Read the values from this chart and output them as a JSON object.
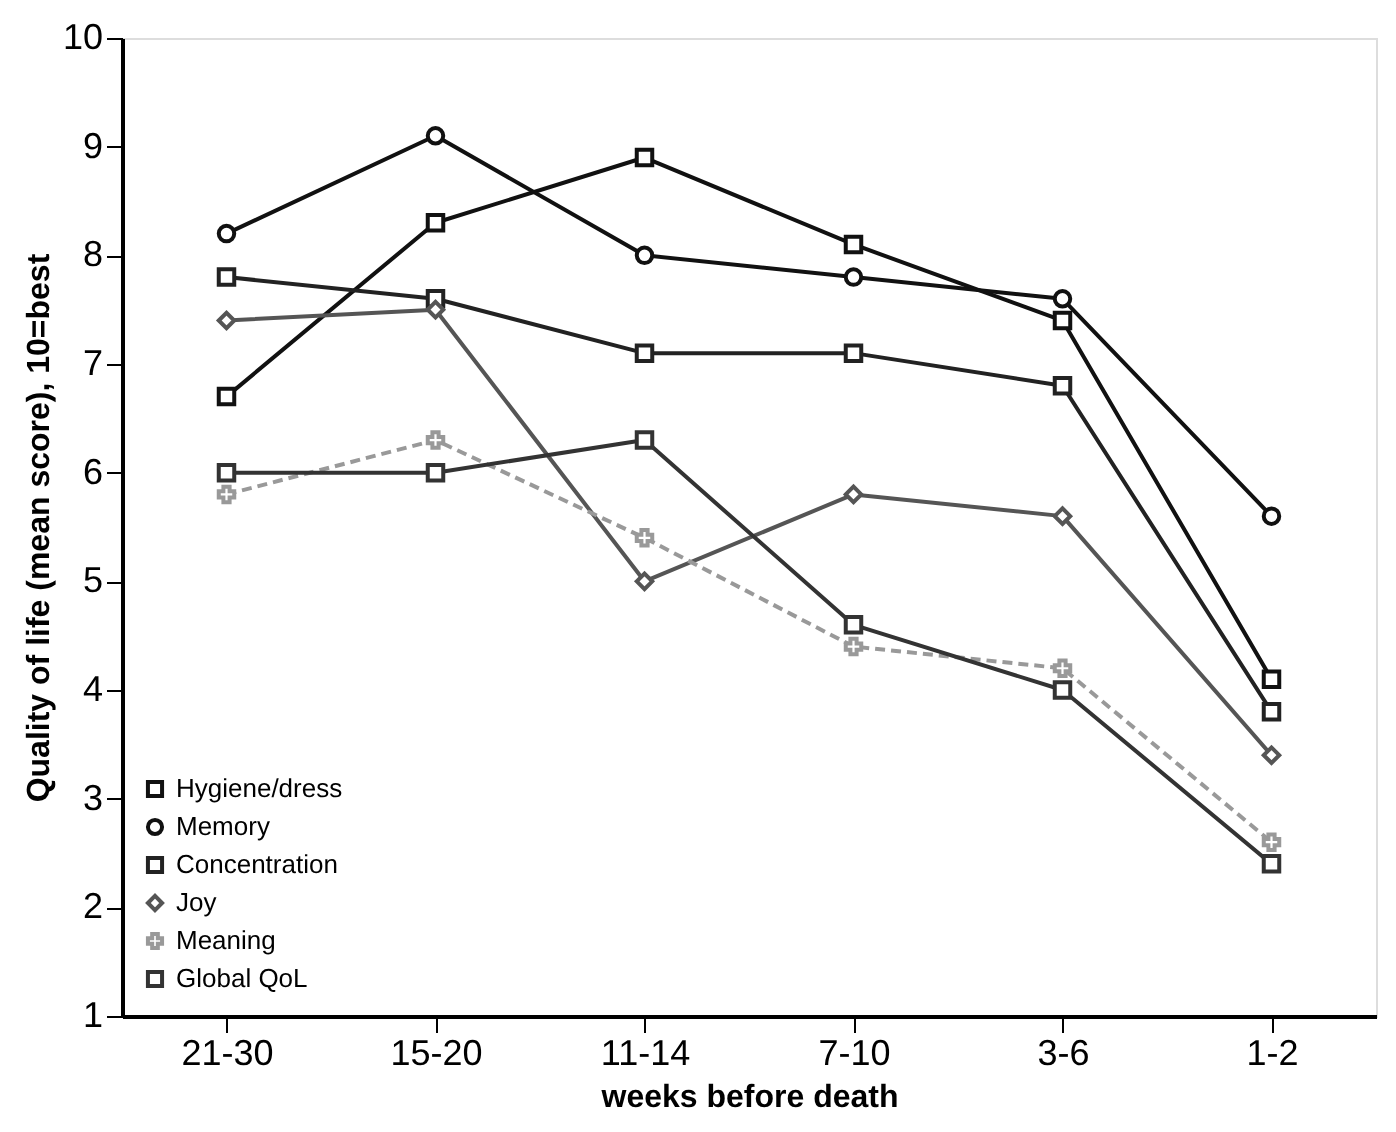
{
  "chart_data": {
    "type": "line",
    "xlabel": "weeks before death",
    "ylabel": "Quality of life (mean score), 10=best",
    "categories": [
      "21-30",
      "15-20",
      "11-14",
      "7-10",
      "3-6",
      "1-2"
    ],
    "series": [
      {
        "name": "Hygiene/dress",
        "color": "#111111",
        "marker": "square",
        "values": [
          6.7,
          8.3,
          8.9,
          8.1,
          7.4,
          4.1
        ]
      },
      {
        "name": "Memory",
        "color": "#111111",
        "marker": "circle",
        "values": [
          8.2,
          9.1,
          8.0,
          7.8,
          7.6,
          5.6
        ]
      },
      {
        "name": "Concentration",
        "color": "#222222",
        "marker": "square",
        "values": [
          7.8,
          7.6,
          7.1,
          7.1,
          6.8,
          3.8
        ]
      },
      {
        "name": "Joy",
        "color": "#555555",
        "marker": "diamond",
        "values": [
          7.4,
          7.5,
          5.0,
          5.8,
          5.6,
          3.4
        ]
      },
      {
        "name": "Meaning",
        "color": "#999999",
        "marker": "cross",
        "line_style": "dashed",
        "values": [
          5.8,
          6.3,
          5.4,
          4.4,
          4.2,
          2.6
        ]
      },
      {
        "name": "Global QoL",
        "color": "#333333",
        "marker": "square",
        "values": [
          6.0,
          6.0,
          6.3,
          4.6,
          4.0,
          2.4
        ]
      }
    ],
    "ylim": [
      1,
      10
    ],
    "yticks": [
      1,
      2,
      3,
      4,
      5,
      6,
      7,
      8,
      9,
      10
    ],
    "grid": false,
    "legend": "bottom left"
  }
}
